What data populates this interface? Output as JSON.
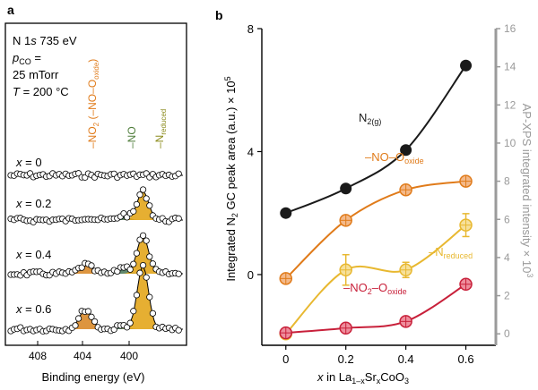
{
  "panels": {
    "a": {
      "label": "a"
    },
    "b": {
      "label": "b"
    }
  },
  "colors": {
    "black": "#1a1a1a",
    "orange": "#e07b1a",
    "yellow": "#e8b830",
    "red": "#c8203a",
    "green_fill": "#4e7c5e",
    "gold_fill": "#e3a61c",
    "orange_fill": "#d98a2a",
    "right_axis_gray": "#9a9a9a",
    "green_text": "#4e7c3a",
    "olive_text": "#8a8a1a"
  },
  "panel_a": {
    "conditions": {
      "line1_pre": "N 1",
      "line1_ital": "s",
      "line1_post": " 735 eV",
      "line2_p": "p",
      "line2_sub": "CO",
      "line2_post": " =",
      "line3": "25 mTorr",
      "line4_T": "T",
      "line4_post": " = 200 °C"
    },
    "peak_labels": {
      "no2_pre": "–NO",
      "no2_sub": "2",
      "no2_mid": " (–NO–O",
      "no2_sub2": "oxide",
      "no2_post": ")",
      "no": "–NO",
      "nred_pre": "–N",
      "nred_sub": "reduced"
    },
    "spectra": [
      {
        "label_x": "x",
        "label_val": " = 0"
      },
      {
        "label_x": "x",
        "label_val": " = 0.2"
      },
      {
        "label_x": "x",
        "label_val": " = 0.4"
      },
      {
        "label_x": "x",
        "label_val": " = 0.6"
      }
    ],
    "xticks": [
      "408",
      "404",
      "400"
    ],
    "xlabel": "Binding energy (eV)"
  },
  "chart_data": {
    "type": "line",
    "x": [
      0,
      0.2,
      0.4,
      0.6
    ],
    "xticks": [
      "0",
      "0.2",
      "0.4",
      "0.6"
    ],
    "xlabel": {
      "pre": "x",
      "post": " in La",
      "s1": "1–x",
      "mid": "Sr",
      "s2": "x",
      "end": "CoO",
      "s3": "3"
    },
    "ylabel_left": {
      "pre": "Integrated N",
      "s1": "2",
      "mid": " GC peak area (a.u.) × 10",
      "sup": "5"
    },
    "ylabel_right": {
      "pre": "AP-XPS integrated intensity × 10",
      "sup": "3"
    },
    "ylim_left": [
      -2.3,
      8
    ],
    "yticks_left": [
      "8",
      "4",
      "0"
    ],
    "ylim_right": [
      -0.6,
      16
    ],
    "yticks_right": [
      "16",
      "14",
      "12",
      "10",
      "8",
      "6",
      "4",
      "2",
      "0"
    ],
    "series": [
      {
        "name_pre": "N",
        "name_sub": "2(g)",
        "axis": "left",
        "values": [
          2.0,
          2.8,
          4.05,
          6.8
        ],
        "errors": [
          0,
          0,
          0,
          0
        ],
        "color": "#1a1a1a"
      },
      {
        "name_pre": "–NO–O",
        "name_sub": "oxide",
        "axis": "right",
        "values": [
          2.9,
          5.95,
          7.55,
          8.0
        ],
        "errors": [
          0,
          0,
          0,
          0
        ],
        "color": "#e07b1a"
      },
      {
        "name_pre": "–N",
        "name_sub": "reduced",
        "axis": "right",
        "values": [
          0.0,
          3.35,
          3.35,
          5.7
        ],
        "errors": [
          0,
          0.8,
          0.4,
          0.6
        ],
        "color": "#e8b830"
      },
      {
        "name_pre": "–NO",
        "name_sub": "2",
        "name_mid": "–O",
        "name_sub2": "oxide",
        "axis": "right",
        "values": [
          0.05,
          0.3,
          0.65,
          2.6
        ],
        "errors": [
          0,
          0,
          0,
          0
        ],
        "color": "#c8203a"
      }
    ]
  }
}
